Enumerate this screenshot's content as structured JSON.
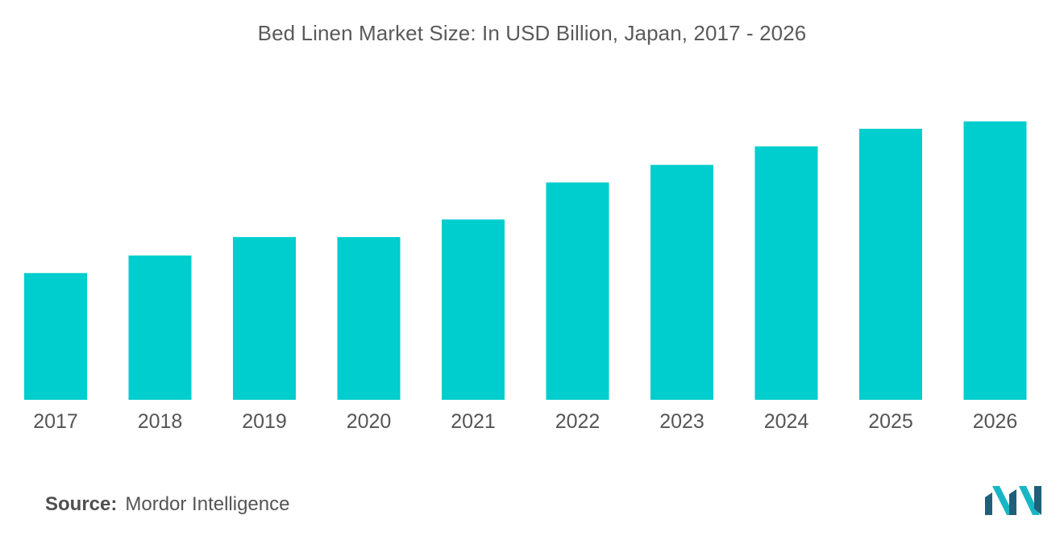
{
  "header": {
    "title": "Bed Linen Market Size: In USD Billion, Japan, 2017 - 2026"
  },
  "footer": {
    "source_label": "Source:",
    "source_value": "Mordor Intelligence",
    "logo_icon": "mordor-intelligence-logo-icon"
  },
  "colors": {
    "bar": "#00CDCD",
    "logo_dark": "#1f5f7a",
    "logo_teal": "#17b6c4"
  },
  "chart_data": {
    "type": "bar",
    "title": "Bed Linen Market Size: In USD Billion, Japan, 2017 - 2026",
    "xlabel": "",
    "ylabel": "",
    "categories": [
      "2017",
      "2018",
      "2019",
      "2020",
      "2021",
      "2022",
      "2023",
      "2024",
      "2025",
      "2026"
    ],
    "values": [
      1.37,
      1.56,
      1.76,
      1.76,
      1.95,
      2.35,
      2.54,
      2.74,
      2.93,
      3.01
    ],
    "ylim": [
      0,
      3.8
    ],
    "grid": false,
    "legend": "none"
  }
}
